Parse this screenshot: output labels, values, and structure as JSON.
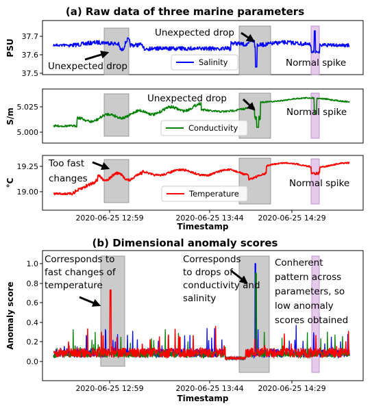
{
  "figure": {
    "title_a": "(a) Raw data of three marine parameters",
    "title_b": "(b) Dimensional anomaly scores",
    "xlabel": "Timestamp"
  },
  "chart_data": [
    {
      "type": "line",
      "panel": "a1",
      "ylabel": "PSU",
      "ylim": [
        37.5,
        37.75
      ],
      "yticks": [
        "37.5",
        "37.6",
        "37.7"
      ],
      "x_ticks": [
        "2020-06-25 12:59",
        "2020-06-25 13:44",
        "2020-06-25 14:29"
      ],
      "series": [
        {
          "name": "Salinity",
          "color": "#0000ff",
          "base": 37.66,
          "noise": 0.012,
          "trend": [
            [
              0,
              37.68
            ],
            [
              0.2,
              37.66
            ],
            [
              0.5,
              37.64
            ],
            [
              0.7,
              37.67
            ],
            [
              0.95,
              37.64
            ],
            [
              1,
              37.68
            ]
          ]
        }
      ],
      "annotations": [
        "Unexpected drop",
        "Unexpected drop",
        "Normal spike"
      ]
    },
    {
      "type": "line",
      "panel": "a2",
      "ylabel": "S/m",
      "ylim": [
        4.995,
        5.038
      ],
      "yticks": [
        "5.000",
        "5.025"
      ],
      "x_ticks": [
        "2020-06-25 12:59",
        "2020-06-25 13:44",
        "2020-06-25 14:29"
      ],
      "series": [
        {
          "name": "Conductivity",
          "color": "#008000",
          "base": 5.02,
          "noise": 0.0015
        }
      ],
      "annotations": [
        "Unexpected drop",
        "Normal spike"
      ]
    },
    {
      "type": "line",
      "panel": "a3",
      "ylabel": "°C",
      "ylim": [
        18.9,
        19.35
      ],
      "yticks": [
        "19.00",
        "19.25"
      ],
      "x_ticks": [
        "2020-06-25 12:59",
        "2020-06-25 13:44",
        "2020-06-25 14:29"
      ],
      "series": [
        {
          "name": "Temperature",
          "color": "#ff0000",
          "base": 19.15,
          "noise": 0.01
        }
      ],
      "annotations": [
        "Too fast",
        "changes",
        "Normal spike"
      ]
    },
    {
      "type": "line",
      "panel": "b",
      "ylabel": "Anomaly score",
      "xlabel": "Timestamp",
      "ylim": [
        -0.1,
        1.1
      ],
      "yticks": [
        "0.0",
        "0.2",
        "0.4",
        "0.6",
        "0.8",
        "1.0"
      ],
      "x_ticks": [
        "2020-06-25 12:59",
        "2020-06-25 13:44",
        "2020-06-25 14:29"
      ],
      "series": [
        {
          "name": "Salinity",
          "color": "#0000ff"
        },
        {
          "name": "Conductivity",
          "color": "#008000"
        },
        {
          "name": "Temperature",
          "color": "#ff0000"
        }
      ],
      "peaks": {
        "temperature_fast_change": 0.73,
        "conductivity_salinity_drop": 1.0
      },
      "annotations": [
        [
          "Corresponds to",
          "fast changes of",
          "temperature"
        ],
        [
          "Corresponds",
          "to drops of",
          "conductivity and",
          "salinity"
        ],
        [
          "Conherent",
          "pattern across",
          "parameters, so",
          "low anomaly",
          "scores obtained"
        ]
      ]
    }
  ]
}
